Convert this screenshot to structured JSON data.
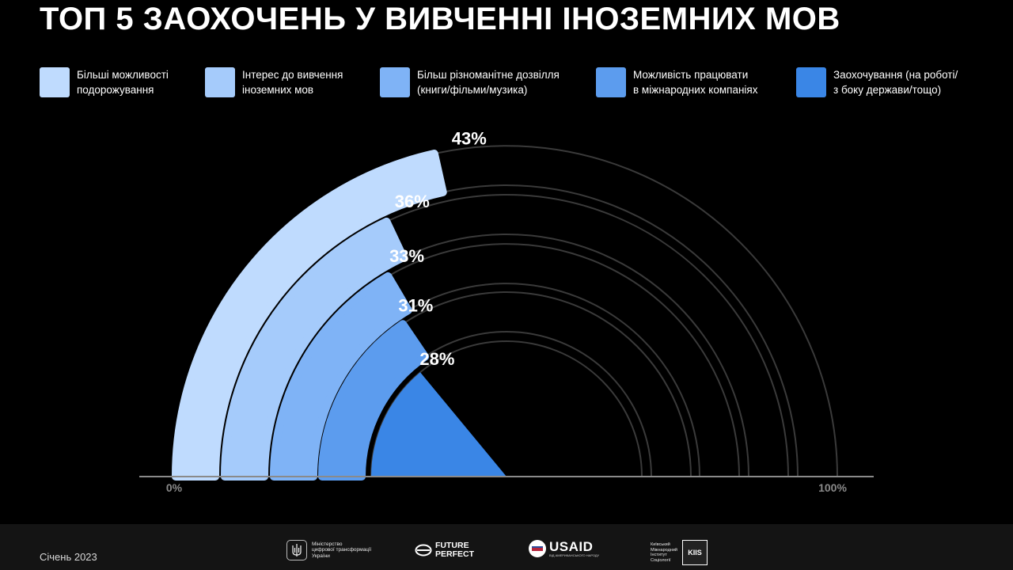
{
  "title": "ТОП 5 ЗАОХОЧЕНЬ У ВИВЧЕННІ ІНОЗЕМНИХ МОВ",
  "chart_data": {
    "type": "radial-bar",
    "categories": [
      "Більші можливості подорожування",
      "Інтерес до вивчення іноземних мов",
      "Більш різноманітне дозвілля (книги/фільми/музика)",
      "Можливість працювати в міжнародних компаніях",
      "Заохочування (на роботі/ з боку держави/тощо)"
    ],
    "values": [
      43,
      36,
      33,
      31,
      28
    ],
    "value_labels": [
      "43%",
      "36%",
      "33%",
      "31%",
      "28%"
    ],
    "colors": [
      "#bfdbfe",
      "#a5cbfb",
      "#7fb3f6",
      "#5c9cee",
      "#3a86e6"
    ],
    "axis_min_label": "0%",
    "axis_max_label": "100%",
    "range": [
      0,
      100
    ]
  },
  "legend": [
    {
      "line1": "Більші можливості",
      "line2": "подорожування"
    },
    {
      "line1": "Інтерес до вивчення",
      "line2": "іноземних мов"
    },
    {
      "line1": "Більш різноманітне дозвілля",
      "line2": "(книги/фільми/музика)"
    },
    {
      "line1": "Можливість працювати",
      "line2": "в міжнародних компаніях"
    },
    {
      "line1": "Заохочування (на роботі/",
      "line2": "з боку держави/тощо)"
    }
  ],
  "footer": {
    "date": "Січень 2023",
    "logo_ministry_lines": [
      "Міністерство",
      "цифрової трансформації",
      "України"
    ],
    "logo_ff_lines": [
      "FUTURE",
      "PERFECT"
    ],
    "logo_usaid": "USAID",
    "logo_usaid_sub": "ВІД АМЕРИКАНСЬКОГО НАРОДУ",
    "logo_kiis_lines": [
      "Київський",
      "Міжнародний",
      "Інститут",
      "Соціології"
    ],
    "logo_kiis_mark": "KIIS"
  },
  "icons": {
    "ministry": "trident-icon",
    "future_perfect": "ff-infinity-icon",
    "usaid": "usaid-seal-icon",
    "kiis": "kiis-icon"
  }
}
